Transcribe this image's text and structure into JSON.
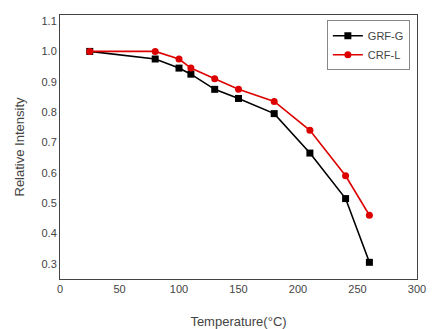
{
  "chart_data": {
    "type": "line",
    "x_label": "Temperature(°C)",
    "y_label": "Relative Intensity",
    "x": [
      25,
      80,
      100,
      110,
      130,
      150,
      180,
      210,
      240,
      260
    ],
    "series": [
      {
        "name": "GRF-G",
        "color": "#000000",
        "marker": "square",
        "values": [
          1.0,
          0.975,
          0.945,
          0.925,
          0.875,
          0.845,
          0.795,
          0.665,
          0.515,
          0.305
        ]
      },
      {
        "name": "CRF-L",
        "color": "#dd0000",
        "marker": "circle",
        "values": [
          1.0,
          1.0,
          0.975,
          0.945,
          0.91,
          0.875,
          0.835,
          0.74,
          0.59,
          0.46
        ]
      }
    ],
    "xlim": [
      0,
      300
    ],
    "ylim": [
      0.25,
      1.12
    ],
    "xticks": [
      0,
      50,
      100,
      150,
      200,
      250,
      300
    ],
    "yticks": [
      0.3,
      0.4,
      0.5,
      0.6,
      0.7,
      0.8,
      0.9,
      {
        "value": 1.0,
        "label": "1.0"
      },
      1.1
    ],
    "legend": "upper right",
    "grid": false
  }
}
